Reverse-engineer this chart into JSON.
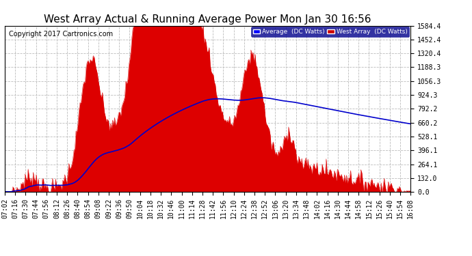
{
  "title": "West Array Actual & Running Average Power Mon Jan 30 16:56",
  "copyright": "Copyright 2017 Cartronics.com",
  "legend_labels": [
    "Average  (DC Watts)",
    "West Array  (DC Watts)"
  ],
  "legend_colors": [
    "#0000ff",
    "#cc0000"
  ],
  "y_ticks": [
    0.0,
    132.0,
    264.1,
    396.1,
    528.1,
    660.2,
    792.2,
    924.3,
    1056.3,
    1188.3,
    1320.4,
    1452.4,
    1584.4
  ],
  "y_max": 1584.4,
  "background_color": "#ffffff",
  "plot_bg_color": "#ffffff",
  "grid_color": "#bbbbbb",
  "bar_color": "#dd0000",
  "line_color": "#0000cc",
  "title_fontsize": 11,
  "tick_fontsize": 7,
  "copyright_fontsize": 7
}
